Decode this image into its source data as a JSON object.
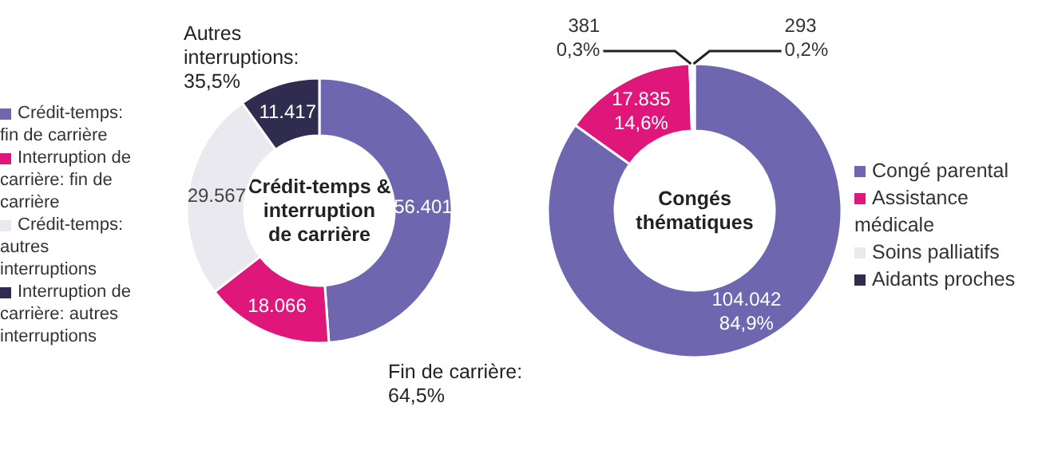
{
  "chart_data": [
    {
      "type": "donut",
      "title": "Crédit-temps & interruption de carrière",
      "categories": [
        "Crédit-temps: fin de carrière",
        "Interruption de carrière: fin de carrière",
        "Crédit-temps: autres interruptions",
        "Interruption de carrière: autres interruptions"
      ],
      "values": [
        56401,
        18066,
        29567,
        11417
      ],
      "value_labels": [
        "56.401",
        "18.066",
        "29.567",
        "11.417"
      ],
      "colors": [
        "#6f66b0",
        "#e0177a",
        "#e9e9ef",
        "#2f2c4f"
      ],
      "legend": "left",
      "annotations": [
        "Autres interruptions: 35,5%",
        "Fin de carrière: 64,5%"
      ]
    },
    {
      "type": "donut",
      "title": "Congés thématiques",
      "categories": [
        "Congé parental",
        "Assistance médicale",
        "Soins palliatifs",
        "Aidants proches"
      ],
      "values": [
        104042,
        17835,
        381,
        293
      ],
      "value_labels": [
        "104.042\n84,9%",
        "17.835\n14,6%",
        "381\n0,3%",
        "293\n0,2%"
      ],
      "colors": [
        "#6f66b0",
        "#e0177a",
        "#e9e9ef",
        "#2f2c4f"
      ],
      "legend": "right"
    }
  ]
}
